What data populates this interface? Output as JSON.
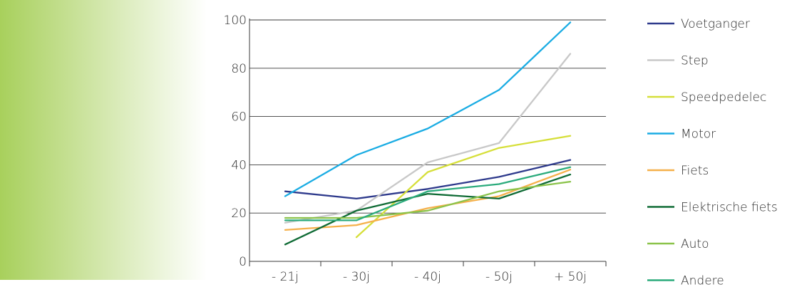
{
  "chart_data": {
    "type": "line",
    "categories": [
      "- 21j",
      "- 30j",
      "- 40j",
      "- 50j",
      "+ 50j"
    ],
    "ylim": [
      0,
      100
    ],
    "yticks": [
      0,
      20,
      40,
      60,
      80,
      100
    ],
    "grid": true,
    "legend_position": "right",
    "series": [
      {
        "name": "Voetganger",
        "color": "#2e3a8c",
        "values": [
          29,
          26,
          30,
          35,
          42
        ]
      },
      {
        "name": "Step",
        "color": "#c8c8c8",
        "values": [
          16,
          21,
          41,
          49,
          86
        ]
      },
      {
        "name": "Speedpedelec",
        "color": "#d6df3a",
        "values": [
          null,
          10,
          37,
          47,
          52
        ]
      },
      {
        "name": "Motor",
        "color": "#1aace3",
        "values": [
          27,
          44,
          55,
          71,
          99
        ]
      },
      {
        "name": "Fiets",
        "color": "#f5b04a",
        "values": [
          13,
          15,
          22,
          27,
          38
        ]
      },
      {
        "name": "Elektrische fiets",
        "color": "#0f6b35",
        "values": [
          7,
          21,
          28,
          26,
          36
        ]
      },
      {
        "name": "Auto",
        "color": "#8bc34a",
        "values": [
          18,
          18,
          21,
          29,
          33
        ]
      },
      {
        "name": "Andere",
        "color": "#2bab7c",
        "values": [
          17,
          17,
          29,
          32,
          39
        ]
      }
    ]
  },
  "decor": {
    "left_gradient_from": "#a8d05c",
    "left_gradient_to": "#ffffff",
    "axis_color": "#3a3a3a",
    "grid_color": "#3a3a3a"
  }
}
